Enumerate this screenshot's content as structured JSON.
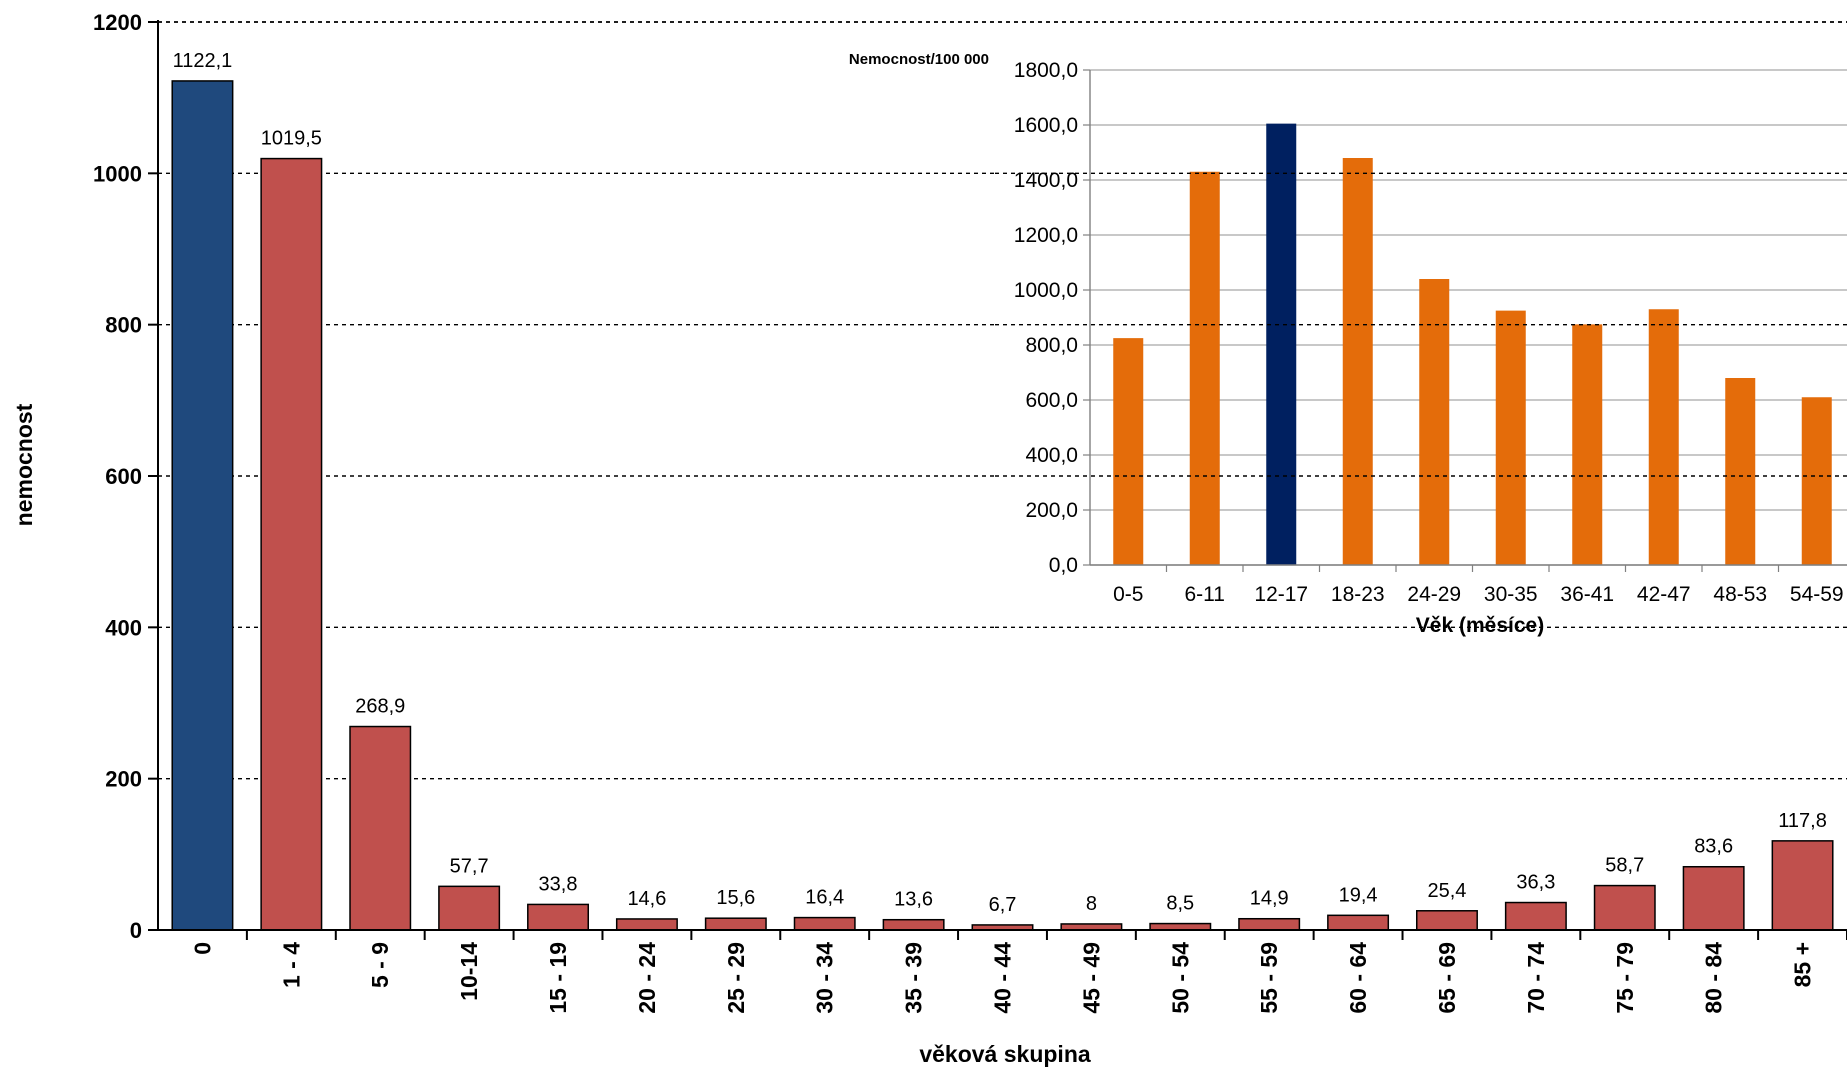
{
  "chart_data": [
    {
      "type": "bar",
      "title": "",
      "xlabel": "věková skupina",
      "ylabel": "nemocnost",
      "ylim": [
        0,
        1200
      ],
      "yticks": [
        "0",
        "200",
        "400",
        "600",
        "800",
        "1000",
        "1200"
      ],
      "grid": "dashed horizontal",
      "categories": [
        "0",
        "1 - 4",
        "5 - 9",
        "10-14",
        "15 - 19",
        "20 - 24",
        "25 - 29",
        "30 - 34",
        "35 - 39",
        "40 - 44",
        "45 - 49",
        "50 - 54",
        "55 - 59",
        "60 - 64",
        "65 - 69",
        "70 - 74",
        "75 - 79",
        "80 - 84",
        "85 +"
      ],
      "values": [
        1122.1,
        1019.5,
        268.9,
        57.7,
        33.8,
        14.6,
        15.6,
        16.4,
        13.6,
        6.7,
        8,
        8.5,
        14.9,
        19.4,
        25.4,
        36.3,
        58.7,
        83.6,
        117.8
      ],
      "value_labels": [
        "1122,1",
        "1019,5",
        "268,9",
        "57,7",
        "33,8",
        "14,6",
        "15,6",
        "16,4",
        "13,6",
        "6,7",
        "8",
        "8,5",
        "14,9",
        "19,4",
        "25,4",
        "36,3",
        "58,7",
        "83,6",
        "117,8"
      ],
      "colors": {
        "highlight": "#1f497d",
        "default": "#c0504d"
      },
      "highlight_index": 0
    },
    {
      "type": "bar",
      "title": "",
      "ylabel": "Nemocnost/100 000",
      "xlabel": "Věk (měsíce)",
      "ylim": [
        0,
        1800
      ],
      "yticks": [
        "0,0",
        "200,0",
        "400,0",
        "600,0",
        "800,0",
        "1000,0",
        "1200,0",
        "1400,0",
        "1600,0",
        "1800,0"
      ],
      "grid": "solid horizontal",
      "categories": [
        "0-5",
        "6-11",
        "12-17",
        "18-23",
        "24-29",
        "30-35",
        "36-41",
        "42-47",
        "48-53",
        "54-59"
      ],
      "values": [
        825,
        1430,
        1605,
        1480,
        1040,
        925,
        875,
        930,
        680,
        610
      ],
      "colors": {
        "highlight": "#002060",
        "default": "#e46c0a"
      },
      "highlight_index": 2
    }
  ]
}
